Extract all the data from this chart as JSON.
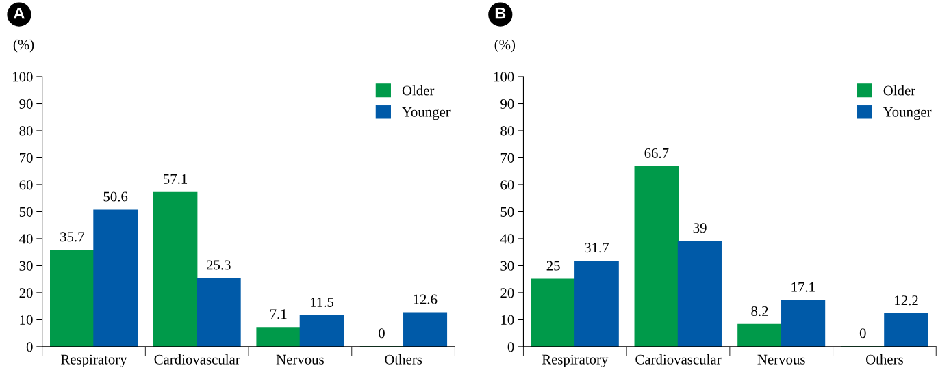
{
  "chart_data": [
    {
      "type": "bar",
      "title": "A",
      "ylabel": "(%)",
      "categories": [
        "Respiratory",
        "Cardiovascular",
        "Nervous",
        "Others"
      ],
      "series": [
        {
          "name": "Older",
          "color": "#009a4a",
          "values": [
            35.7,
            57.1,
            7.1,
            0
          ]
        },
        {
          "name": "Younger",
          "color": "#005aa8",
          "values": [
            50.6,
            25.3,
            11.5,
            12.6
          ]
        }
      ],
      "ylim": [
        0,
        100
      ],
      "yticks": [
        0,
        10,
        20,
        30,
        40,
        50,
        60,
        70,
        80,
        90,
        100
      ],
      "data_labels": true,
      "legend": "top right",
      "grid": false
    },
    {
      "type": "bar",
      "title": "B",
      "ylabel": "(%)",
      "categories": [
        "Respiratory",
        "Cardiovascular",
        "Nervous",
        "Others"
      ],
      "series": [
        {
          "name": "Older",
          "color": "#009a4a",
          "values": [
            25,
            66.7,
            8.2,
            0
          ]
        },
        {
          "name": "Younger",
          "color": "#005aa8",
          "values": [
            31.7,
            39,
            17.1,
            12.2
          ]
        }
      ],
      "ylim": [
        0,
        100
      ],
      "yticks": [
        0,
        10,
        20,
        30,
        40,
        50,
        60,
        70,
        80,
        90,
        100
      ],
      "data_labels": true,
      "legend": "top right",
      "grid": false
    }
  ]
}
